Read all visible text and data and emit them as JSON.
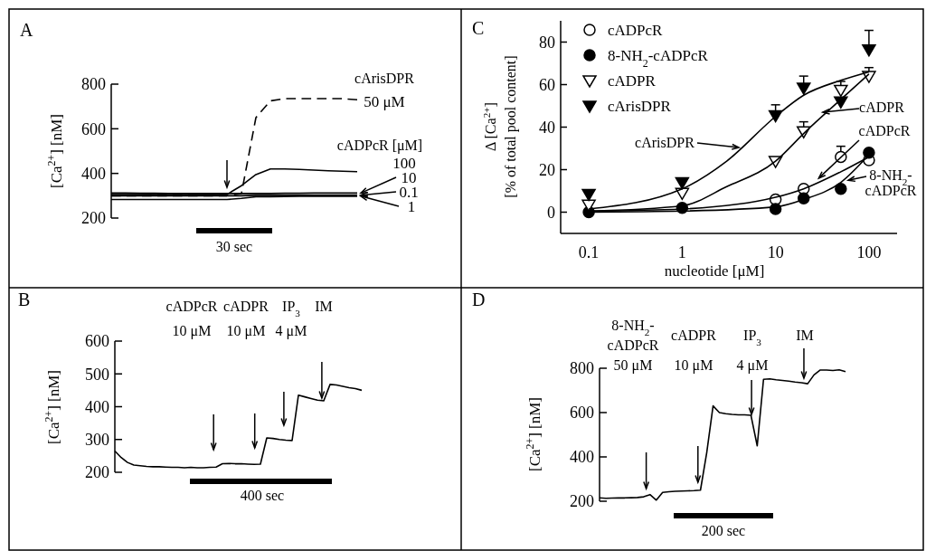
{
  "chart_data": [
    {
      "type": "line",
      "title": "A",
      "ylabel": "[Ca$^{2+}$] [nM]",
      "tick_labels": "y",
      "categories": [
        null,
        null,
        null,
        null,
        null,
        null,
        null,
        null,
        null,
        null,
        null,
        null,
        null,
        null,
        null,
        null,
        null,
        null
      ],
      "ylim": [
        200,
        800
      ],
      "yticks": [
        200,
        400,
        600,
        800
      ],
      "annotations": [
        "cArisDPR",
        "cADPcR [μM]",
        "30 sec"
      ],
      "series": [
        {
          "name": "50 μM",
          "color": "#000000",
          "line_style": "dashed",
          "values": [
            300,
            300,
            300,
            300,
            300,
            300,
            300,
            300,
            300,
            310,
            650,
            725,
            735,
            735,
            735,
            735,
            735,
            730
          ]
        },
        {
          "name": "100",
          "color": "#000000",
          "line_style": "solid",
          "values": [
            305,
            305,
            305,
            306,
            306,
            306,
            305,
            305,
            306,
            345,
            395,
            420,
            420,
            418,
            415,
            412,
            410,
            408
          ]
        },
        {
          "name": "10",
          "color": "#000000",
          "line_style": "solid",
          "values": [
            312,
            312,
            311,
            311,
            310,
            310,
            310,
            310,
            310,
            310,
            310,
            310,
            311,
            311,
            312,
            312,
            312,
            312
          ]
        },
        {
          "name": "0.1",
          "color": "#000000",
          "line_style": "solid",
          "values": [
            300,
            300,
            300,
            300,
            300,
            300,
            300,
            300,
            300,
            300,
            302,
            302,
            302,
            302,
            302,
            302,
            302,
            302
          ]
        },
        {
          "name": "1",
          "color": "#000000",
          "line_style": "solid",
          "values": [
            283,
            283,
            283,
            283,
            283,
            283,
            283,
            283,
            283,
            288,
            295,
            295,
            296,
            297,
            298,
            298,
            298,
            298
          ]
        }
      ]
    },
    {
      "type": "scatter",
      "title": "C",
      "xlabel": "nucleotide [μM]",
      "ylabel": "Δ [Ca$^{2+}$]\n[% of total pool content]",
      "log": "x",
      "xlim": [
        0.05,
        200
      ],
      "xticks": [
        0.1,
        1,
        10,
        100
      ],
      "ylim": [
        -10,
        90
      ],
      "yticks": [
        0,
        20,
        40,
        60,
        80
      ],
      "legend": "top left",
      "annotations": [
        "cArisDPR",
        {
          "text": "cADPR",
          "x": 32,
          "y": 47
        },
        {
          "text": "cADPcR",
          "x": 29,
          "y": 16
        },
        {
          "text": "8-NH$_{2}$-\ncADPcR",
          "x": 60,
          "y": 15
        }
      ],
      "series": [
        {
          "name": "cADPcR",
          "color": "#000000",
          "marker": "circle-open",
          "x": [
            10,
            20,
            50,
            100
          ],
          "values": [
            6,
            11,
            26,
            24.5
          ],
          "errors": [
            null,
            null,
            [
              26,
              31
            ],
            null
          ]
        },
        {
          "name": "8-NH$_{2}$-cADPcR",
          "color": "#000000",
          "marker": "circle",
          "x": [
            0.1,
            1,
            10,
            20,
            50,
            100
          ],
          "values": [
            0,
            2,
            1.5,
            6.5,
            11,
            28
          ],
          "errors": [
            null,
            null,
            null,
            null,
            null,
            null
          ]
        },
        {
          "name": "cADPR",
          "color": "#000000",
          "marker": "triangle-open",
          "x": [
            0.1,
            1,
            10,
            20,
            50,
            100
          ],
          "values": [
            3.5,
            9,
            24,
            38,
            57.5,
            64
          ],
          "errors": [
            null,
            null,
            null,
            [
              38,
              42.5
            ],
            [
              57.5,
              61.5
            ],
            [
              64,
              68
            ]
          ]
        },
        {
          "name": "cArisDPR",
          "color": "#000000",
          "marker": "triangle",
          "x": [
            0.1,
            1,
            10,
            20,
            50,
            100
          ],
          "values": [
            8.5,
            14,
            45.5,
            58.5,
            52,
            76.5
          ],
          "errors": [
            null,
            null,
            [
              45.5,
              50.5
            ],
            [
              58.5,
              64
            ],
            null,
            [
              76.5,
              85.5
            ]
          ]
        },
        {
          "type": "line",
          "color": "#000000",
          "marker": "none",
          "x": [
            0.1,
            1,
            3,
            10,
            20,
            50,
            100
          ],
          "values": [
            1.5,
            11,
            24,
            45,
            55,
            62,
            66
          ]
        },
        {
          "type": "line",
          "color": "#000000",
          "marker": "none",
          "x": [
            0.1,
            1,
            3,
            10,
            20,
            50,
            100
          ],
          "values": [
            0.5,
            3,
            12,
            24,
            37,
            53,
            65
          ]
        },
        {
          "type": "line",
          "color": "#000000",
          "marker": "none",
          "x": [
            0.1,
            1,
            10,
            20,
            50,
            100
          ],
          "values": [
            0.5,
            1.5,
            7,
            11,
            19,
            26
          ]
        },
        {
          "type": "line",
          "color": "#000000",
          "marker": "none",
          "x": [
            0.1,
            1,
            10,
            20,
            50,
            100
          ],
          "values": [
            0,
            0.5,
            2.5,
            6,
            14,
            27
          ]
        }
      ]
    },
    {
      "type": "line",
      "title": "B",
      "ylabel": "[Ca$^{2+}$] [nM]",
      "tick_labels": "y",
      "categories": [
        null,
        null,
        null,
        null,
        null,
        null,
        null,
        null,
        null,
        null,
        null,
        null,
        null,
        null,
        null,
        null,
        null,
        null,
        null,
        null,
        null,
        null,
        null,
        null,
        null,
        null,
        null,
        null,
        null,
        null,
        null,
        null,
        null,
        null,
        null,
        null,
        null,
        null,
        null,
        null
      ],
      "ylim": [
        200,
        600
      ],
      "yticks": [
        200,
        300,
        400,
        500,
        600
      ],
      "annotations": [
        "cADPcR\n10 μM",
        "cADPR\n10 μM",
        "IP$_{3}$\n4 μM",
        "IM",
        "400 sec"
      ],
      "series": [
        {
          "color": "#000000",
          "values": [
            265,
            245,
            230,
            222,
            220,
            218,
            217,
            217,
            216,
            215,
            215,
            214,
            215,
            214,
            214,
            215,
            216,
            226,
            227,
            226,
            226,
            225,
            224,
            225,
            305,
            303,
            300,
            298,
            297,
            435,
            430,
            425,
            420,
            418,
            468,
            466,
            462,
            458,
            455,
            450
          ]
        }
      ]
    },
    {
      "type": "line",
      "title": "D",
      "ylabel": "[Ca$^{2+}$] [nM]",
      "tick_labels": "y",
      "categories": [
        null,
        null,
        null,
        null,
        null,
        null,
        null,
        null,
        null,
        null,
        null,
        null,
        null,
        null,
        null,
        null,
        null,
        null,
        null,
        null,
        null,
        null,
        null,
        null,
        null,
        null,
        null,
        null,
        null,
        null,
        null,
        null,
        null,
        null,
        null,
        null,
        null,
        null,
        null,
        null
      ],
      "ylim": [
        200,
        800
      ],
      "yticks": [
        200,
        400,
        600,
        800
      ],
      "annotations": [
        "8-NH$_{2}$-\ncADPcR\n50 μM",
        "cADPR\n10 μM",
        "IP$_{3}$\n4 μM",
        "IM",
        "200 sec"
      ],
      "series": [
        {
          "color": "#000000",
          "values": [
            215,
            213,
            214,
            215,
            215,
            216,
            217,
            220,
            230,
            205,
            240,
            243,
            245,
            246,
            247,
            248,
            250,
            420,
            630,
            600,
            595,
            592,
            590,
            590,
            588,
            450,
            750,
            752,
            748,
            745,
            742,
            738,
            735,
            730,
            770,
            792,
            792,
            790,
            793,
            785
          ]
        }
      ]
    }
  ]
}
